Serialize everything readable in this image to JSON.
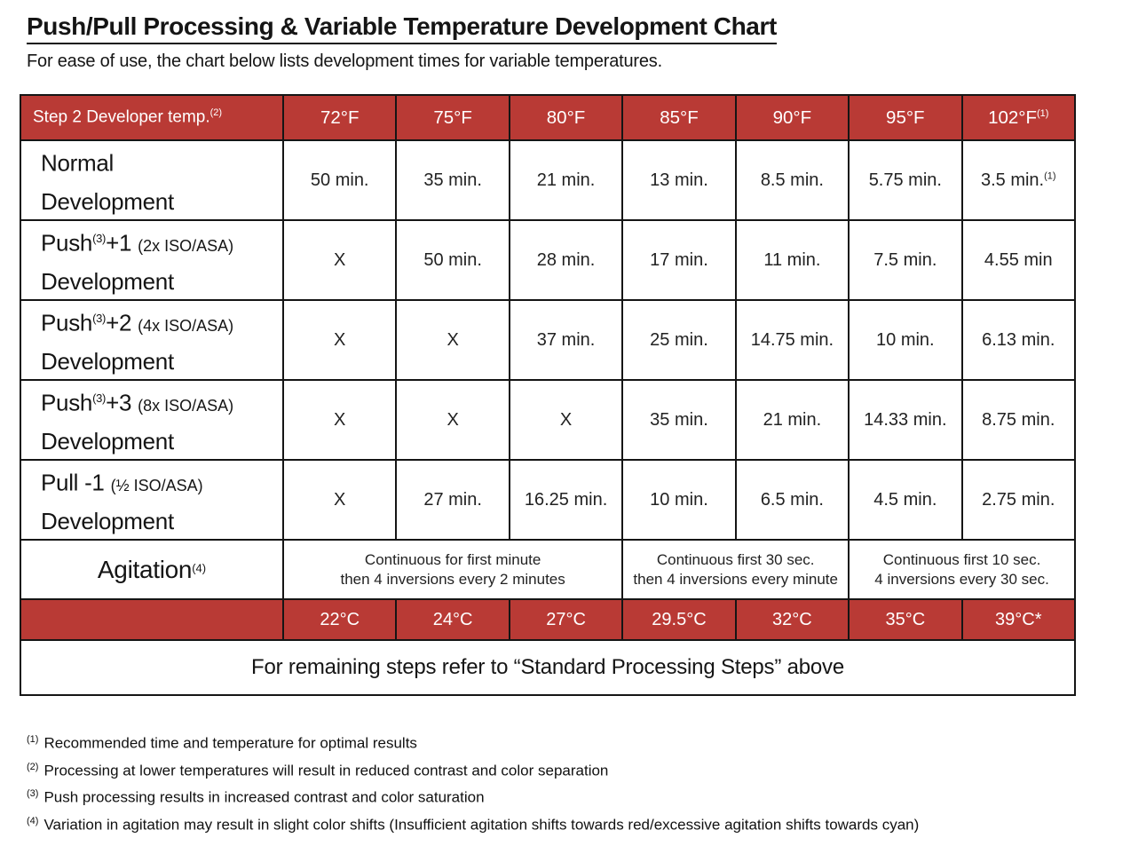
{
  "page": {
    "title": "Push/Pull Processing & Variable Temperature Development Chart",
    "subtitle": "For ease of use, the chart below lists development times for variable temperatures."
  },
  "colors": {
    "accent_red": "#b93a35",
    "border_black": "#151515"
  },
  "table": {
    "header": {
      "label": "Step 2 Developer temp.",
      "label_sup": "(2)",
      "temps": [
        {
          "label": "72°F",
          "sup": ""
        },
        {
          "label": "75°F",
          "sup": ""
        },
        {
          "label": "80°F",
          "sup": ""
        },
        {
          "label": "85°F",
          "sup": ""
        },
        {
          "label": "90°F",
          "sup": ""
        },
        {
          "label": "95°F",
          "sup": ""
        },
        {
          "label": "102°F",
          "sup": "(1)"
        }
      ]
    },
    "rows": [
      {
        "prefix": "Normal",
        "sup": "",
        "suffix": "",
        "paren": "",
        "line2": "Development",
        "cells": [
          "50 min.",
          "35 min.",
          "21 min.",
          "13 min.",
          "8.5 min.",
          "5.75 min.",
          "3.5 min."
        ],
        "last_sup": "(1)"
      },
      {
        "prefix": "Push",
        "sup": "(3)",
        "suffix": "+1",
        "paren": "(2x ISO/ASA)",
        "line2": "Development",
        "cells": [
          "X",
          "50 min.",
          "28 min.",
          "17 min.",
          "11 min.",
          "7.5 min.",
          "4.55 min"
        ],
        "last_sup": ""
      },
      {
        "prefix": "Push",
        "sup": "(3)",
        "suffix": "+2",
        "paren": "(4x ISO/ASA)",
        "line2": "Development",
        "cells": [
          "X",
          "X",
          "37 min.",
          "25 min.",
          "14.75 min.",
          "10 min.",
          "6.13 min."
        ],
        "last_sup": ""
      },
      {
        "prefix": "Push",
        "sup": "(3)",
        "suffix": "+3",
        "paren": "(8x ISO/ASA)",
        "line2": "Development",
        "cells": [
          "X",
          "X",
          "X",
          "35 min.",
          "21 min.",
          "14.33 min.",
          "8.75 min."
        ],
        "last_sup": ""
      },
      {
        "prefix": "Pull -1",
        "sup": "",
        "suffix": "",
        "paren": "(½ ISO/ASA)",
        "line2": "Development",
        "cells": [
          "X",
          "27 min.",
          "16.25 min.",
          "10 min.",
          "6.5 min.",
          "4.5 min.",
          "2.75 min."
        ],
        "last_sup": ""
      }
    ],
    "agitation": {
      "label": "Agitation",
      "label_sup": "(4)",
      "spans": [
        {
          "line1": "Continuous for first minute",
          "line2": "then 4 inversions every 2 minutes"
        },
        {
          "line1": "Continuous first 30 sec.",
          "line2": "then 4 inversions every minute"
        },
        {
          "line1": "Continuous first 10 sec.",
          "line2": "4 inversions every 30 sec."
        }
      ]
    },
    "celsius": [
      "22°C",
      "24°C",
      "27°C",
      "29.5°C",
      "32°C",
      "35°C",
      "39°C*"
    ],
    "footer": "For remaining steps refer to “Standard Processing Steps” above"
  },
  "footnotes": [
    {
      "sup": "(1)",
      "text": "Recommended time and temperature for optimal results"
    },
    {
      "sup": "(2)",
      "text": "Processing at lower temperatures will result in reduced contrast and color separation"
    },
    {
      "sup": "(3)",
      "text": "Push processing results in increased contrast and color saturation"
    },
    {
      "sup": "(4)",
      "text": "Variation in agitation may result in slight color shifts (Insufficient agitation shifts towards red/excessive agitation shifts towards cyan)"
    }
  ],
  "chart_data": {
    "type": "table",
    "columns": [
      "Step 2 Developer temp.",
      "72°F / 22°C",
      "75°F / 24°C",
      "80°F / 27°C",
      "85°F / 29.5°C",
      "90°F / 32°C",
      "95°F / 35°C",
      "102°F / 39°C*"
    ],
    "rows": [
      {
        "label": "Normal Development",
        "values": [
          "50 min.",
          "35 min.",
          "21 min.",
          "13 min.",
          "8.5 min.",
          "5.75 min.",
          "3.5 min."
        ]
      },
      {
        "label": "Push +1 (2x ISO/ASA) Development",
        "values": [
          "X",
          "50 min.",
          "28 min.",
          "17 min.",
          "11 min.",
          "7.5 min.",
          "4.55 min"
        ]
      },
      {
        "label": "Push +2 (4x ISO/ASA) Development",
        "values": [
          "X",
          "X",
          "37 min.",
          "25 min.",
          "14.75 min.",
          "10 min.",
          "6.13 min."
        ]
      },
      {
        "label": "Push +3 (8x ISO/ASA) Development",
        "values": [
          "X",
          "X",
          "X",
          "35 min.",
          "21 min.",
          "14.33 min.",
          "8.75 min."
        ]
      },
      {
        "label": "Pull -1 (½ ISO/ASA) Development",
        "values": [
          "X",
          "27 min.",
          "16.25 min.",
          "10 min.",
          "6.5 min.",
          "4.5 min.",
          "2.75 min."
        ]
      },
      {
        "label": "Agitation",
        "values": [
          "Continuous for first minute then 4 inversions every 2 minutes",
          "",
          "",
          "Continuous first 30 sec. then 4 inversions every minute",
          "",
          "Continuous first 10 sec. 4 inversions every 30 sec.",
          ""
        ]
      }
    ],
    "title": "Push/Pull Processing & Variable Temperature Development Chart"
  }
}
